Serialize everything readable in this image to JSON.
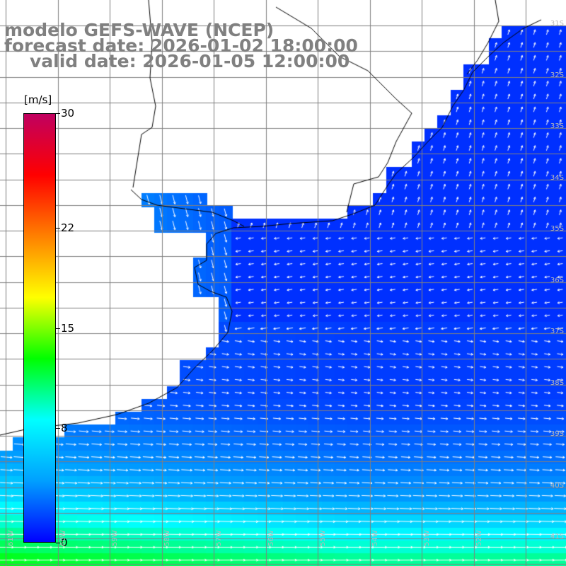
{
  "title": {
    "model": "modelo GEFS-WAVE (NCEP)",
    "forecast": "forecast date: 2026-01-02 18:00:00",
    "valid": "valid date: 2026-01-05 12:00:00"
  },
  "colorbar": {
    "unit": "[m/s]",
    "min": 0,
    "max": 30,
    "ticks": [
      {
        "label": "30",
        "value": 30
      },
      {
        "label": "22",
        "value": 22
      },
      {
        "label": "15",
        "value": 15
      },
      {
        "label": "8",
        "value": 8
      },
      {
        "label": "0",
        "value": 0
      }
    ],
    "colors": [
      "#0000ff",
      "#00a0ff",
      "#00ffff",
      "#00ff00",
      "#ffff00",
      "#ff8000",
      "#ff0000",
      "#c00060"
    ]
  },
  "grid_labels": {
    "latitudes": [
      "31S",
      "32S",
      "33S",
      "34S",
      "35S",
      "36S",
      "37S",
      "38S",
      "39S",
      "40S",
      "41S"
    ],
    "longitudes": [
      "61W",
      "60W",
      "59W",
      "58W",
      "57W",
      "56W",
      "55W",
      "54W",
      "53W",
      "52W"
    ]
  },
  "map_colors": {
    "land": "#ffffff",
    "coastline": "#000000",
    "gridlines": "#808080",
    "arrows": "#ffffff"
  }
}
